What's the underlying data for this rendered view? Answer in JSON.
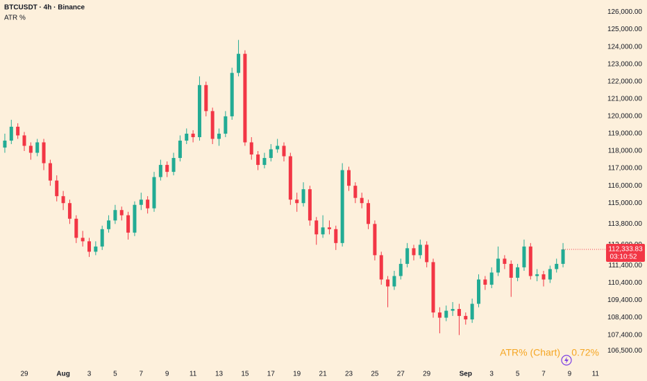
{
  "chart_data": {
    "type": "candlestick",
    "title": "BTCUSDT · 4h · Binance",
    "indicator": "ATR %",
    "annotations": [
      "ATR% (Chart)",
      "0.72%"
    ],
    "last_price_label": "112,333.83",
    "countdown": "03:10:52",
    "up_color": "#22ab94",
    "down_color": "#f23645",
    "background": "#fdf0dc",
    "grid": false,
    "categories": [
      null,
      null,
      null,
      "29",
      null,
      null,
      null,
      null,
      null,
      "Aug",
      null,
      null,
      null,
      "3",
      null,
      null,
      null,
      "5",
      null,
      null,
      null,
      "7",
      null,
      null,
      null,
      "9",
      null,
      null,
      null,
      "11",
      null,
      null,
      null,
      "13",
      null,
      null,
      null,
      "15",
      null,
      null,
      null,
      "17",
      null,
      null,
      null,
      "19",
      null,
      null,
      null,
      "21",
      null,
      null,
      null,
      "23",
      null,
      null,
      null,
      "25",
      null,
      null,
      null,
      "27",
      null,
      null,
      null,
      "29",
      null,
      null,
      null,
      null,
      null,
      "Sep",
      null,
      null,
      null,
      "3",
      null,
      null,
      null,
      "5",
      null,
      null,
      null,
      "7",
      null,
      null,
      null,
      "9",
      null,
      null,
      null,
      "11"
    ],
    "open": [
      118200,
      118600,
      119400,
      118900,
      118300,
      117900,
      118500,
      117300,
      116300,
      115400,
      115000,
      114100,
      113000,
      112800,
      112200,
      112500,
      113500,
      114000,
      114600,
      114300,
      113300,
      114900,
      115200,
      114700,
      116500,
      117200,
      116800,
      117600,
      118600,
      119000,
      118800,
      121800,
      120300,
      118700,
      119000,
      120000,
      122500,
      123600,
      118500,
      117800,
      117200,
      117600,
      118100,
      118300,
      117700,
      115200,
      115000,
      115800,
      114000,
      113200,
      113600,
      113500,
      112700,
      116900,
      116000,
      115300,
      115000,
      113800,
      112000,
      110600,
      110200,
      110800,
      111500,
      112400,
      112000,
      112600,
      111600,
      108700,
      108400,
      108800,
      108900,
      108500,
      108300,
      109200,
      110600,
      110300,
      111000,
      111800,
      111500,
      110700,
      111300,
      112500,
      110800,
      110900,
      110600,
      111200,
      111500,
      null,
      null,
      null,
      null,
      null
    ],
    "high": [
      119000,
      119800,
      119600,
      119100,
      118500,
      118700,
      118700,
      117500,
      116600,
      115700,
      115200,
      114300,
      113400,
      113000,
      112800,
      113700,
      114300,
      114900,
      114800,
      114500,
      115100,
      115600,
      115400,
      116800,
      117500,
      117400,
      117900,
      118900,
      119300,
      119200,
      122300,
      122000,
      120500,
      119300,
      120300,
      122800,
      124400,
      123800,
      118800,
      118000,
      117900,
      118400,
      118700,
      118500,
      117900,
      115600,
      116200,
      116000,
      114200,
      114300,
      114000,
      113700,
      117300,
      117100,
      116200,
      115600,
      115200,
      114000,
      112200,
      110800,
      111100,
      111800,
      112700,
      112600,
      112900,
      112800,
      111800,
      109000,
      109100,
      109300,
      109200,
      108700,
      109500,
      110900,
      110800,
      111300,
      112500,
      112000,
      111700,
      111500,
      112900,
      112700,
      111200,
      111100,
      111400,
      111800,
      112700,
      null,
      null,
      null,
      null,
      null
    ],
    "low": [
      117900,
      118400,
      118700,
      118000,
      117500,
      117700,
      116900,
      116000,
      115100,
      114600,
      113800,
      112700,
      112500,
      111900,
      112000,
      112300,
      113300,
      113800,
      114000,
      112900,
      113100,
      114600,
      114400,
      114500,
      116300,
      116500,
      116600,
      117400,
      118400,
      118500,
      118600,
      120000,
      118400,
      118300,
      118800,
      119800,
      122300,
      118300,
      117500,
      116900,
      117000,
      117400,
      117900,
      117400,
      114900,
      114500,
      114800,
      113700,
      112600,
      113000,
      113200,
      112300,
      112500,
      115700,
      115000,
      114700,
      113500,
      111700,
      110300,
      109000,
      110000,
      110600,
      111300,
      111700,
      111800,
      111300,
      108400,
      107500,
      108200,
      108500,
      107400,
      108000,
      108100,
      109000,
      110000,
      110100,
      110800,
      111200,
      109600,
      110500,
      111100,
      110600,
      110500,
      110200,
      110400,
      111000,
      111300,
      null,
      null,
      null,
      null,
      null
    ],
    "close": [
      118600,
      119400,
      118900,
      118300,
      117900,
      118500,
      117300,
      116300,
      115400,
      115000,
      114100,
      113000,
      112800,
      112200,
      112500,
      113500,
      114000,
      114600,
      114300,
      113300,
      114900,
      115200,
      114700,
      116500,
      117200,
      116800,
      117600,
      118600,
      119000,
      118800,
      121800,
      120300,
      118700,
      119000,
      120000,
      122500,
      123600,
      118500,
      117800,
      117200,
      117600,
      118100,
      118300,
      117700,
      115200,
      115000,
      115800,
      114000,
      113200,
      113600,
      113500,
      112700,
      116900,
      116000,
      115300,
      115000,
      113800,
      112000,
      110600,
      110200,
      110800,
      111500,
      112400,
      112000,
      112600,
      111600,
      108700,
      108400,
      108800,
      108900,
      108500,
      108300,
      109200,
      110600,
      110300,
      111000,
      111800,
      111500,
      110700,
      111300,
      112500,
      110800,
      110900,
      110600,
      111200,
      111500,
      112333.83,
      null,
      null,
      null,
      null,
      null
    ],
    "ylim": [
      105950,
      126700
    ],
    "yticks": [
      {
        "value": 126000,
        "label": "126,000.00"
      },
      {
        "value": 125000,
        "label": "125,000.00"
      },
      {
        "value": 124000,
        "label": "124,000.00"
      },
      {
        "value": 123000,
        "label": "123,000.00"
      },
      {
        "value": 122000,
        "label": "122,000.00"
      },
      {
        "value": 121000,
        "label": "121,000.00"
      },
      {
        "value": 120000,
        "label": "120,000.00"
      },
      {
        "value": 119000,
        "label": "119,000.00"
      },
      {
        "value": 118000,
        "label": "118,000.00"
      },
      {
        "value": 117000,
        "label": "117,000.00"
      },
      {
        "value": 116000,
        "label": "116,000.00"
      },
      {
        "value": 115000,
        "label": "115,000.00"
      },
      {
        "value": 113800,
        "label": "113,800.00"
      },
      {
        "value": 112600,
        "label": "112,600.00"
      },
      {
        "value": 111400,
        "label": "111,400.00"
      },
      {
        "value": 110400,
        "label": "110,400.00"
      },
      {
        "value": 109400,
        "label": "109,400.00"
      },
      {
        "value": 108400,
        "label": "108,400.00"
      },
      {
        "value": 107400,
        "label": "107,400.00"
      },
      {
        "value": 106500,
        "label": "106,500.00"
      }
    ]
  }
}
